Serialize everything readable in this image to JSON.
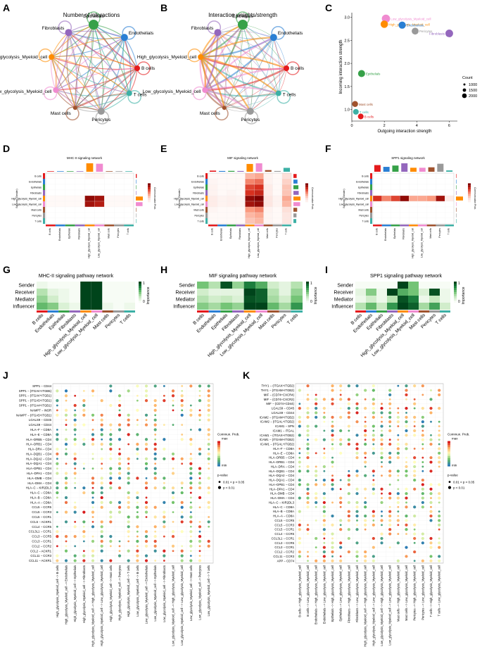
{
  "figure": {
    "palette": [
      "#e41a1c",
      "#4daf4a",
      "#377eb8",
      "#984ea3",
      "#ff7f00",
      "#ff69b4",
      "#a6761d",
      "#999999",
      "#66c2a5",
      "#1f78b4"
    ],
    "cell_types": [
      "B cells",
      "Endothelials",
      "Epithelials",
      "Fibroblasts",
      "High_glycolysis_Myeloid_cell",
      "Low_glycolysis_Myeloid_cell",
      "Mast cells",
      "Pericytes",
      "T cells"
    ],
    "cell_colors": [
      "#e41a1c",
      "#2a7fd4",
      "#36a148",
      "#9467bd",
      "#ff8c00",
      "#f08bd0",
      "#a0522d",
      "#999999",
      "#3cb0a5"
    ]
  },
  "panels": {
    "A": {
      "letter": "A",
      "title": "Number of interactions",
      "type": "network"
    },
    "B": {
      "letter": "B",
      "title": "Interaction weights/strength",
      "type": "network"
    },
    "C": {
      "letter": "C",
      "type": "scatter"
    },
    "D": {
      "letter": "D",
      "title": "MHC-II signaling network",
      "type": "heatmap"
    },
    "E": {
      "letter": "E",
      "title": "MIF signaling network",
      "type": "heatmap"
    },
    "F": {
      "letter": "F",
      "title": "SPP1 signaling network",
      "type": "heatmap"
    },
    "G": {
      "letter": "G",
      "title": "MHC-II signaling pathway network",
      "type": "role-heatmap"
    },
    "H": {
      "letter": "H",
      "title": "MIF signaling pathway network",
      "type": "role-heatmap"
    },
    "I": {
      "letter": "I",
      "title": "SPP1 signaling pathway network",
      "type": "role-heatmap"
    },
    "J": {
      "letter": "J",
      "type": "bubble"
    },
    "K": {
      "letter": "K",
      "type": "bubble"
    }
  },
  "network_labels": {
    "A": [
      "Epithelials",
      "Endothelials",
      "B cells",
      "T cells",
      "Pericytes",
      "Mast cells",
      "Low_glycolysis_Myeloid_cell",
      "High_glycolysis_Myeloid_cell",
      "Fibroblasts"
    ],
    "B": [
      "Epithelials",
      "Endothelials",
      "B cells",
      "T cells",
      "Pericytes",
      "Mast cells",
      "Low_glycolysis_Myeloid_cell",
      "High_glycolysis_Myeloid_cell",
      "Fibroblasts"
    ]
  },
  "chart_data": [
    {
      "type": "scatter",
      "panel": "C",
      "xlabel": "Outgoing interaction strength",
      "ylabel": "Incoming interaction strength",
      "xlim": [
        0,
        6.5
      ],
      "ylim": [
        0.75,
        3.1
      ],
      "xticks": [
        0,
        2,
        4,
        6
      ],
      "yticks": [
        1.0,
        1.5,
        2.0,
        2.5,
        3.0
      ],
      "legend_title": "Count",
      "legend_values": [
        1000,
        1500,
        2000
      ],
      "points": [
        {
          "label": "Low_glycolysis_Myeloid_cell",
          "x": 2.1,
          "y": 2.97,
          "size": 2100,
          "color": "#f08bd0"
        },
        {
          "label": "High_glycolysis_Myeloid_cell",
          "x": 2.0,
          "y": 2.85,
          "size": 1500,
          "color": "#ff8c00"
        },
        {
          "label": "Endothelials",
          "x": 3.1,
          "y": 2.83,
          "size": 1400,
          "color": "#2a7fd4"
        },
        {
          "label": "Pericytes",
          "x": 3.9,
          "y": 2.7,
          "size": 1200,
          "color": "#999999"
        },
        {
          "label": "Fibroblasts",
          "x": 6.0,
          "y": 2.65,
          "size": 1700,
          "color": "#9467bd"
        },
        {
          "label": "Epithelials",
          "x": 0.6,
          "y": 1.78,
          "size": 1300,
          "color": "#36a148"
        },
        {
          "label": "Mast cells",
          "x": 0.2,
          "y": 1.12,
          "size": 700,
          "color": "#a0522d"
        },
        {
          "label": "T cells",
          "x": 0.25,
          "y": 0.95,
          "size": 600,
          "color": "#3cb0a5"
        },
        {
          "label": "B cells",
          "x": 0.55,
          "y": 0.85,
          "size": 600,
          "color": "#e41a1c"
        }
      ]
    },
    {
      "type": "heatmap",
      "panel": "D",
      "ylabel": "Sources (Sender)",
      "legend_title": "Communication Prob.",
      "rows": [
        "B cells",
        "Endothelials",
        "Epithelials",
        "Fibroblasts",
        "High_glycolysis_Myeloid_cell",
        "Low_glycolysis_Myeloid_cell",
        "Mast cells",
        "Pericytes",
        "T cells"
      ],
      "cols": [
        "B cells",
        "Endothelials",
        "Epithelials",
        "Fibroblasts",
        "High_glycolysis_Myeloid_cell",
        "Low_glycolysis_Myeloid_cell",
        "Mast cells",
        "Pericytes",
        "T cells"
      ],
      "values": [
        [
          0.02,
          0.02,
          0.02,
          0.02,
          0.08,
          0.08,
          0.02,
          0.02,
          0.02
        ],
        [
          0,
          0,
          0,
          0,
          0,
          0,
          0,
          0,
          0
        ],
        [
          0,
          0,
          0,
          0,
          0,
          0,
          0,
          0,
          0
        ],
        [
          0,
          0,
          0,
          0,
          0,
          0,
          0,
          0,
          0
        ],
        [
          0.05,
          0.05,
          0.05,
          0.05,
          0.95,
          0.9,
          0.05,
          0.05,
          0.05
        ],
        [
          0.05,
          0.05,
          0.05,
          0.05,
          0.9,
          0.85,
          0.05,
          0.05,
          0.05
        ],
        [
          0,
          0,
          0,
          0,
          0,
          0,
          0,
          0,
          0
        ],
        [
          0,
          0,
          0,
          0,
          0,
          0,
          0,
          0,
          0
        ],
        [
          0,
          0,
          0,
          0,
          0,
          0,
          0,
          0,
          0
        ]
      ]
    },
    {
      "type": "heatmap",
      "panel": "E",
      "ylabel": "Sources (Sender)",
      "legend_title": "Communication Prob.",
      "rows": [
        "B cells",
        "Endothelials",
        "Epithelials",
        "Fibroblasts",
        "High_glycolysis_Myeloid_cell",
        "Low_glycolysis_Myeloid_cell",
        "Mast cells",
        "Pericytes",
        "T cells"
      ],
      "cols": [
        "B cells",
        "Endothelials",
        "Epithelials",
        "Fibroblasts",
        "High_glycolysis_Myeloid_cell",
        "Low_glycolysis_Myeloid_cell",
        "Mast cells",
        "Pericytes",
        "T cells"
      ],
      "values": [
        [
          0.05,
          0.05,
          0.05,
          0.05,
          0.4,
          0.45,
          0.1,
          0.05,
          0.25
        ],
        [
          0.08,
          0.05,
          0.05,
          0.05,
          0.55,
          0.6,
          0.1,
          0.05,
          0.3
        ],
        [
          0.1,
          0.05,
          0.05,
          0.05,
          0.7,
          0.75,
          0.15,
          0.05,
          0.35
        ],
        [
          0.1,
          0.05,
          0.08,
          0.05,
          0.75,
          0.8,
          0.15,
          0.05,
          0.35
        ],
        [
          0.15,
          0.1,
          0.12,
          0.1,
          0.95,
          1.0,
          0.2,
          0.1,
          0.45
        ],
        [
          0.15,
          0.1,
          0.12,
          0.1,
          0.9,
          0.95,
          0.2,
          0.1,
          0.4
        ],
        [
          0.08,
          0.05,
          0.05,
          0.05,
          0.5,
          0.55,
          0.1,
          0.05,
          0.25
        ],
        [
          0.05,
          0.05,
          0.05,
          0.05,
          0.4,
          0.45,
          0.08,
          0.05,
          0.2
        ],
        [
          0.05,
          0.05,
          0.05,
          0.05,
          0.35,
          0.4,
          0.08,
          0.05,
          0.2
        ]
      ]
    },
    {
      "type": "heatmap",
      "panel": "F",
      "ylabel": "Sources (Sender)",
      "legend_title": "Communication Prob.",
      "rows": [
        "B cells",
        "Endothelials",
        "Epithelials",
        "Fibroblasts",
        "High_glycolysis_Myeloid_cell",
        "Low_glycolysis_Myeloid_cell",
        "Mast cells",
        "Pericytes",
        "T cells"
      ],
      "cols": [
        "B cells",
        "Endothelials",
        "Epithelials",
        "Fibroblasts",
        "High_glycolysis_Myeloid_cell",
        "Low_glycolysis_Myeloid_cell",
        "Mast cells",
        "Pericytes",
        "T cells"
      ],
      "values": [
        [
          0,
          0,
          0,
          0,
          0,
          0,
          0,
          0,
          0
        ],
        [
          0,
          0,
          0,
          0,
          0,
          0,
          0,
          0,
          0
        ],
        [
          0,
          0,
          0,
          0,
          0,
          0,
          0,
          0,
          0
        ],
        [
          0,
          0,
          0,
          0,
          0,
          0,
          0,
          0,
          0
        ],
        [
          0.75,
          0.55,
          0.7,
          0.95,
          0.45,
          0.45,
          0.5,
          0.9,
          0.15
        ],
        [
          0,
          0,
          0,
          0,
          0,
          0,
          0,
          0,
          0
        ],
        [
          0,
          0,
          0,
          0,
          0,
          0,
          0,
          0,
          0
        ],
        [
          0,
          0,
          0,
          0,
          0,
          0,
          0,
          0,
          0
        ],
        [
          0,
          0,
          0,
          0,
          0,
          0,
          0,
          0,
          0
        ]
      ]
    },
    {
      "type": "heatmap",
      "panel": "G",
      "legend_title": "Importance",
      "legend_range": [
        0,
        1
      ],
      "rows": [
        "Sender",
        "Receiver",
        "Mediator",
        "Influencer"
      ],
      "cols": [
        "B cells",
        "Endothelials",
        "Epithelials",
        "Fibroblasts",
        "High_glycolysis_Myeloid_cell",
        "Low_glycolysis_Myeloid_cell",
        "Mast cells",
        "Pericytes",
        "T cells"
      ],
      "values": [
        [
          0.05,
          0,
          0,
          0,
          1.0,
          1.0,
          0,
          0,
          0
        ],
        [
          0.3,
          0.1,
          0.05,
          0,
          1.0,
          1.0,
          0,
          0,
          0
        ],
        [
          0.4,
          0.2,
          0.05,
          0,
          1.0,
          1.0,
          0,
          0,
          0
        ],
        [
          0.55,
          0.45,
          0.15,
          0.05,
          1.0,
          1.0,
          0.05,
          0,
          0.05
        ]
      ]
    },
    {
      "type": "heatmap",
      "panel": "H",
      "legend_title": "Importance",
      "legend_range": [
        0,
        1
      ],
      "rows": [
        "Sender",
        "Receiver",
        "Mediator",
        "Influencer"
      ],
      "cols": [
        "B cells",
        "Endothelials",
        "Epithelials",
        "Fibroblasts",
        "High_glycolysis_Myeloid_cell",
        "Low_glycolysis_Myeloid_cell",
        "Mast cells",
        "Pericytes",
        "T cells"
      ],
      "values": [
        [
          0.5,
          0.3,
          0.95,
          0.4,
          0.8,
          0.6,
          0.2,
          0.1,
          0.3
        ],
        [
          0.2,
          0.1,
          0.1,
          0.1,
          1.0,
          0.9,
          0.3,
          0.1,
          0.4
        ],
        [
          0.3,
          0.2,
          0.25,
          0.15,
          0.95,
          0.9,
          0.35,
          0.2,
          0.5
        ],
        [
          0.45,
          0.35,
          0.5,
          0.4,
          1.0,
          1.0,
          0.55,
          0.35,
          0.7
        ]
      ]
    },
    {
      "type": "heatmap",
      "panel": "I",
      "legend_title": "Importance",
      "legend_range": [
        0,
        1
      ],
      "rows": [
        "Sender",
        "Receiver",
        "Mediator",
        "Influencer"
      ],
      "cols": [
        "B cells",
        "Endothelials",
        "Epithelials",
        "Fibroblasts",
        "High_glycolysis_Myeloid_cell",
        "Low_glycolysis_Myeloid_cell",
        "Mast cells",
        "Pericytes",
        "T cells"
      ],
      "values": [
        [
          0,
          0,
          0,
          0,
          1.0,
          0.5,
          0,
          0,
          0
        ],
        [
          0.1,
          0.45,
          0.05,
          1.0,
          0.6,
          0.5,
          0.15,
          0.95,
          0.05
        ],
        [
          0.05,
          0.2,
          0.05,
          0.3,
          0.95,
          0.8,
          0.05,
          0.25,
          0.05
        ],
        [
          0.3,
          0.55,
          0.25,
          0.7,
          1.0,
          0.9,
          0.35,
          0.65,
          0.2
        ]
      ]
    },
    {
      "type": "bubble",
      "panel": "J",
      "legend_title": "Commun. Prob.",
      "legend_max": "max",
      "legend_min": "min",
      "pvalue_title": "p-value",
      "pvalue_levels": [
        "0.01 < p < 0.05",
        "p < 0.01"
      ],
      "rows": [
        "SPP1 − CD44",
        "SPP1 − (ITGAV+ITGB5)",
        "SPP1 − (ITGAV+ITGB1)",
        "SPP1 − (ITGA5+ITGB1)",
        "SPP1 − (ITGA4+ITGB1)",
        "NAMPT − INSR",
        "NAMPT − (ITGA5+ITGB1)",
        "LGALS9 − CD45",
        "LGALS9 − CD44",
        "HLA−F − CD8A",
        "HLA−E − CD8A",
        "HLA−DRB5 − CD4",
        "HLA−DRB1 − CD4",
        "HLA−DRA − CD4",
        "HLA−DQB1 − CD4",
        "HLA−DQA2 − CD4",
        "HLA−DQA1 − CD4",
        "HLA−DPB1 − CD4",
        "HLA−DPA1 − CD4",
        "HLA−DMB − CD4",
        "HLA−DMA − CD4",
        "HLA−C − KIR2DL3",
        "HLA−C − CD8A",
        "HLA−B − CD8A",
        "HLA−A − CD8A",
        "CCL5 − CCR5",
        "CCL5 − CCR3",
        "CCL5 − CCR1",
        "CCL5 − ACKR1",
        "CCL4 − CCR5",
        "CCL3L1 − CCR1",
        "CCL3 − CCR5",
        "CCL3 − CCR1",
        "CCL2 − CCR2",
        "CCL2 − ACKR1",
        "CCL11 − CCR3",
        "CCL11 − ACKR1"
      ],
      "cols": [
        "High_glycolysis_Myeloid_cell −> B cells",
        "High_glycolysis_Myeloid_cell −> Endothelials",
        "High_glycolysis_Myeloid_cell −> Epithelials",
        "High_glycolysis_Myeloid_cell −> Fibroblasts",
        "High_glycolysis_Myeloid_cell −> High_glycolysis_Myeloid_cell",
        "High_glycolysis_Myeloid_cell −> Low_glycolysis_Myeloid_cell",
        "High_glycolysis_Myeloid_cell −> Mast cells",
        "High_glycolysis_Myeloid_cell −> Pericytes",
        "High_glycolysis_Myeloid_cell −> T cells",
        "Low_glycolysis_Myeloid_cell −> B cells",
        "Low_glycolysis_Myeloid_cell −> Endothelials",
        "Low_glycolysis_Myeloid_cell −> Epithelials",
        "Low_glycolysis_Myeloid_cell −> Fibroblasts",
        "Low_glycolysis_Myeloid_cell −> High_glycolysis_Myeloid_cell",
        "Low_glycolysis_Myeloid_cell −> Low_glycolysis_Myeloid_cell",
        "Low_glycolysis_Myeloid_cell −> Mast cells",
        "Low_glycolysis_Myeloid_cell −> Pericytes",
        "Low_glycolysis_Myeloid_cell −> T cells"
      ]
    },
    {
      "type": "bubble",
      "panel": "K",
      "legend_title": "Commun. Prob.",
      "legend_max": "max",
      "legend_min": "min",
      "pvalue_title": "p-value",
      "pvalue_levels": [
        "0.01 < p < 0.05",
        "p < 0.01"
      ],
      "rows": [
        "THY1 − (ITGAX+ITGB2)",
        "THY1 − (ITGAM+ITGB2)",
        "MIF − (CD74+CXCR4)",
        "MIF − (CD74+CXCR2)",
        "MIF − (CD74+CD44)",
        "LGALS9 − CD45",
        "LGALS9 − CD44",
        "ICAM2 − (ITGAM+ITGB2)",
        "ICAM2 − (ITGAL+ITGB2)",
        "ICAM1 − SPN",
        "ICAM1 − ITGAL",
        "ICAM1 − (ITGAX+ITGB2)",
        "ICAM1 − (ITGAM+ITGB2)",
        "ICAM1 − (ITGAL+ITGB2)",
        "HLA−F − CD8A",
        "HLA−E − CD8A",
        "HLA−DRB5 − CD4",
        "HLA−DRB1 − CD4",
        "HLA−DRA − CD4",
        "HLA−DQB1 − CD4",
        "HLA−DQA2 − CD4",
        "HLA−DQA1 − CD4",
        "HLA−DPB1 − CD4",
        "HLA−DPA1 − CD4",
        "HLA−DMB − CD4",
        "HLA−DMA − CD4",
        "HLA−C − KIR2DL3",
        "HLA−C − CD8A",
        "HLA−B − CD8A",
        "HLA−A − CD8A",
        "CCL5 − CCR5",
        "CCL5 − CCR3",
        "CCL5 − CCR1",
        "CCL4 − CCR5",
        "CCL3L1 − CCR1",
        "CCL3 − CCR5",
        "CCL3 − CCR1",
        "CCL2 − CCR2",
        "CCL11 − CCR3",
        "APP − CD74"
      ],
      "cols": [
        "B cells −> High_glycolysis_Myeloid_cell",
        "B cells −> Low_glycolysis_Myeloid_cell",
        "Endothelials −> High_glycolysis_Myeloid_cell",
        "Endothelials −> Low_glycolysis_Myeloid_cell",
        "Epithelials −> High_glycolysis_Myeloid_cell",
        "Epithelials −> Low_glycolysis_Myeloid_cell",
        "Fibroblasts −> High_glycolysis_Myeloid_cell",
        "Fibroblasts −> Low_glycolysis_Myeloid_cell",
        "High_glycolysis_Myeloid_cell −> High_glycolysis_Myeloid_cell",
        "High_glycolysis_Myeloid_cell −> Low_glycolysis_Myeloid_cell",
        "Low_glycolysis_Myeloid_cell −> High_glycolysis_Myeloid_cell",
        "Low_glycolysis_Myeloid_cell −> Low_glycolysis_Myeloid_cell",
        "Mast cells −> High_glycolysis_Myeloid_cell",
        "Mast cells −> Low_glycolysis_Myeloid_cell",
        "Pericytes −> High_glycolysis_Myeloid_cell",
        "Pericytes −> Low_glycolysis_Myeloid_cell",
        "T cells −> High_glycolysis_Myeloid_cell",
        "T cells −> Low_glycolysis_Myeloid_cell"
      ]
    }
  ]
}
